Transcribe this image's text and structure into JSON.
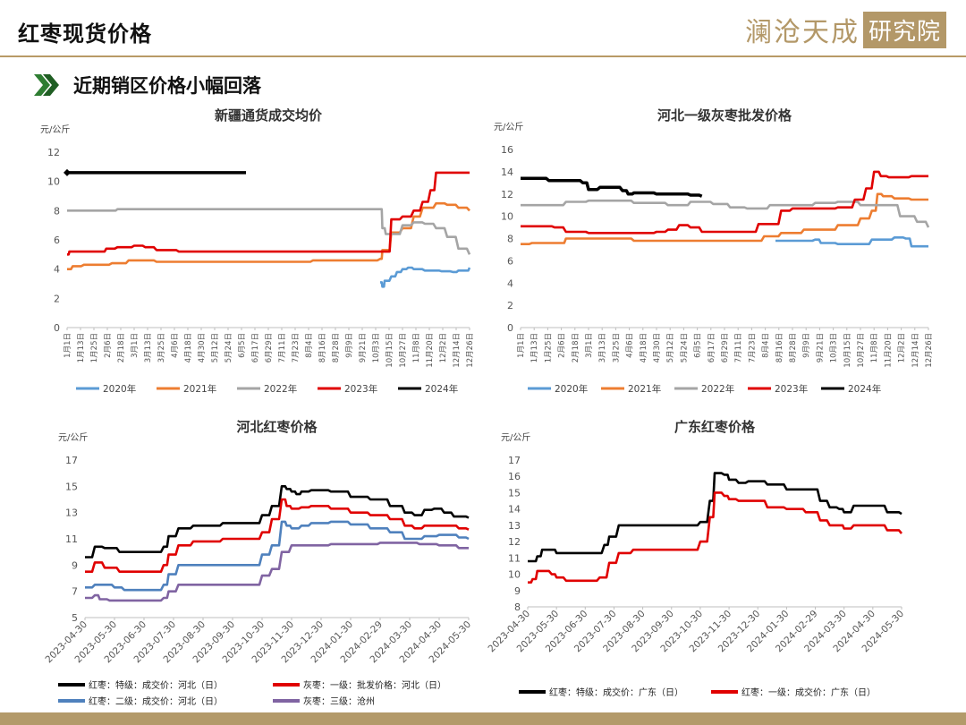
{
  "header": {
    "title": "红枣现货价格",
    "brand": "澜沧天成",
    "brand_box": "研究院"
  },
  "section": {
    "title": "近期销区价格小幅回落",
    "icon": "double-chevron-right-icon"
  },
  "colors": {
    "gold": "#b39868",
    "c2020": "#5b9bd5",
    "c2021": "#ed7d31",
    "c2022": "#a5a5a5",
    "c2023": "#e00000",
    "c2024": "#000000",
    "purple": "#8064a2",
    "blue": "#4f81bd"
  },
  "chart_data": [
    {
      "id": "xinjiang",
      "type": "line",
      "title": "新疆通货成交均价",
      "unit": "元/公斤",
      "ylim": [
        0,
        12
      ],
      "yticks": [
        0,
        2,
        4,
        6,
        8,
        10,
        12
      ],
      "x_domain": [
        0,
        360
      ],
      "xtick_labels": [
        "1月1日",
        "1月13日",
        "1月25日",
        "2月6日",
        "2月18日",
        "3月1日",
        "3月13日",
        "3月25日",
        "4月6日",
        "4月18日",
        "4月30日",
        "5月12日",
        "5月24日",
        "6月5日",
        "6月17日",
        "6月29日",
        "7月11日",
        "7月23日",
        "8月4日",
        "8月16日",
        "8月28日",
        "9月9日",
        "9月21日",
        "10月3日",
        "10月15日",
        "10月27日",
        "11月8日",
        "11月20日",
        "12月2日",
        "12月14日",
        "12月26日"
      ],
      "series": [
        {
          "name": "2020年",
          "color": "#5b9bd5",
          "x": [
            280,
            282,
            284,
            290,
            295,
            300,
            305,
            310,
            320,
            335,
            345,
            350,
            356,
            360
          ],
          "y": [
            3.1,
            2.8,
            3.2,
            3.5,
            3.8,
            4.0,
            4.1,
            4.0,
            3.9,
            3.85,
            3.8,
            3.9,
            3.9,
            4.1
          ]
        },
        {
          "name": "2021年",
          "color": "#ed7d31",
          "x": [
            0,
            5,
            15,
            40,
            55,
            80,
            120,
            180,
            220,
            270,
            280,
            282,
            285,
            290,
            300,
            310,
            318,
            330,
            340,
            350,
            360
          ],
          "y": [
            4.0,
            4.2,
            4.3,
            4.4,
            4.6,
            4.5,
            4.5,
            4.5,
            4.6,
            4.6,
            4.7,
            5.3,
            5.3,
            6.5,
            6.8,
            7.6,
            8.2,
            8.5,
            8.4,
            8.2,
            8.0
          ]
        },
        {
          "name": "2022年",
          "color": "#a5a5a5",
          "x": [
            0,
            40,
            45,
            90,
            150,
            200,
            250,
            280,
            282,
            285,
            300,
            310,
            320,
            330,
            340,
            350,
            360
          ],
          "y": [
            8.0,
            8.0,
            8.1,
            8.1,
            8.1,
            8.1,
            8.1,
            8.1,
            6.8,
            6.4,
            7.0,
            7.2,
            7.1,
            6.8,
            6.2,
            5.4,
            5.0
          ]
        },
        {
          "name": "2023年",
          "color": "#e00000",
          "x": [
            0,
            2,
            30,
            35,
            45,
            60,
            70,
            80,
            100,
            150,
            200,
            260,
            285,
            290,
            300,
            310,
            318,
            325,
            330,
            360
          ],
          "y": [
            5.0,
            5.2,
            5.2,
            5.4,
            5.5,
            5.6,
            5.5,
            5.3,
            5.2,
            5.2,
            5.2,
            5.2,
            5.2,
            7.4,
            7.6,
            8.0,
            8.6,
            9.4,
            10.6,
            10.6
          ]
        },
        {
          "name": "2024年",
          "color": "#000000",
          "x": [
            0,
            160
          ],
          "y": [
            10.6,
            10.6
          ]
        }
      ]
    },
    {
      "id": "hebei-wholesale",
      "type": "line",
      "title": "河北一级灰枣批发价格",
      "unit": "元/公斤",
      "ylim": [
        0,
        16
      ],
      "yticks": [
        0,
        2,
        4,
        6,
        8,
        10,
        12,
        14,
        16
      ],
      "x_domain": [
        0,
        360
      ],
      "xtick_labels": [
        "1月1日",
        "1月13日",
        "1月25日",
        "2月6日",
        "2月18日",
        "3月1日",
        "3月13日",
        "3月25日",
        "4月6日",
        "4月18日",
        "4月30日",
        "5月12日",
        "5月24日",
        "6月5日",
        "6月17日",
        "6月29日",
        "7月11日",
        "7月23日",
        "8月4日",
        "8月16日",
        "8月28日",
        "9月9日",
        "9月21日",
        "10月3日",
        "10月15日",
        "10月27日",
        "11月8日",
        "11月20日",
        "12月2日",
        "12月14日",
        "12月26日"
      ],
      "series": [
        {
          "name": "2020年",
          "color": "#5b9bd5",
          "x": [
            225,
            260,
            265,
            280,
            300,
            310,
            330,
            340,
            345,
            360
          ],
          "y": [
            7.8,
            7.9,
            7.6,
            7.5,
            7.5,
            7.9,
            8.1,
            8.0,
            7.3,
            7.3
          ]
        },
        {
          "name": "2021年",
          "color": "#ed7d31",
          "x": [
            0,
            10,
            35,
            40,
            80,
            100,
            125,
            200,
            215,
            230,
            250,
            280,
            300,
            310,
            315,
            320,
            330,
            345,
            360
          ],
          "y": [
            7.5,
            7.6,
            7.6,
            8.0,
            8.0,
            7.8,
            7.8,
            7.8,
            8.2,
            8.5,
            8.8,
            9.2,
            9.8,
            10.5,
            12.0,
            11.8,
            11.6,
            11.5,
            11.5
          ]
        },
        {
          "name": "2022年",
          "color": "#a5a5a5",
          "x": [
            0,
            10,
            40,
            60,
            100,
            130,
            150,
            170,
            185,
            200,
            220,
            260,
            280,
            300,
            320,
            335,
            350,
            360
          ],
          "y": [
            11.0,
            11.0,
            11.3,
            11.4,
            11.2,
            11.0,
            11.3,
            11.1,
            10.8,
            10.7,
            11.0,
            11.2,
            11.3,
            11.0,
            11.0,
            10.0,
            9.5,
            9.0
          ]
        },
        {
          "name": "2023年",
          "color": "#e00000",
          "x": [
            0,
            30,
            40,
            60,
            100,
            120,
            130,
            140,
            150,
            160,
            200,
            210,
            230,
            240,
            260,
            280,
            295,
            305,
            312,
            318,
            325,
            345,
            360
          ],
          "y": [
            9.1,
            9.0,
            8.6,
            8.5,
            8.5,
            8.6,
            8.8,
            9.2,
            9.0,
            8.6,
            8.6,
            9.3,
            10.5,
            10.7,
            10.7,
            10.8,
            11.5,
            12.5,
            14.0,
            13.6,
            13.5,
            13.6,
            13.6
          ]
        },
        {
          "name": "2024年",
          "color": "#000000",
          "x": [
            0,
            15,
            25,
            55,
            60,
            70,
            90,
            95,
            100,
            120,
            140,
            150,
            160
          ],
          "y": [
            13.4,
            13.4,
            13.2,
            13.0,
            12.4,
            12.6,
            12.3,
            12.0,
            12.1,
            12.0,
            12.0,
            11.9,
            11.8
          ]
        }
      ]
    },
    {
      "id": "hebei-red-dates",
      "type": "line",
      "title": "河北红枣价格",
      "unit": "元/公斤",
      "ylim": [
        5,
        17
      ],
      "yticks": [
        5,
        7,
        9,
        11,
        13,
        15,
        17
      ],
      "x_domain": [
        0,
        390
      ],
      "xtick_labels": [
        "2023-04-30",
        "2023-05-30",
        "2023-06-30",
        "2023-07-30",
        "2023-08-30",
        "2023-09-30",
        "2023-10-30",
        "2023-11-30",
        "2023-12-30",
        "2024-01-30",
        "2024-02-29",
        "2024-03-30",
        "2024-04-30",
        "2024-05-30"
      ],
      "series": [
        {
          "name": "红枣：特级：成交价：河北（日）",
          "color": "#000000",
          "x": [
            0,
            10,
            20,
            35,
            60,
            80,
            85,
            95,
            110,
            140,
            180,
            190,
            200,
            205,
            210,
            215,
            220,
            230,
            250,
            270,
            290,
            310,
            325,
            335,
            345,
            355,
            365,
            375,
            390
          ],
          "y": [
            9.6,
            10.4,
            10.3,
            10.0,
            10.0,
            10.4,
            11.2,
            11.8,
            12.0,
            12.2,
            12.8,
            13.5,
            15.0,
            14.8,
            14.6,
            14.4,
            14.6,
            14.7,
            14.6,
            14.2,
            14.0,
            13.5,
            13.0,
            12.8,
            13.2,
            13.3,
            13.0,
            12.7,
            12.6
          ]
        },
        {
          "name": "灰枣：一级：批发价格：河北（日）",
          "color": "#e00000",
          "x": [
            0,
            10,
            20,
            35,
            60,
            80,
            85,
            95,
            110,
            140,
            180,
            190,
            200,
            205,
            210,
            220,
            230,
            250,
            270,
            290,
            310,
            325,
            335,
            345,
            360,
            380,
            390
          ],
          "y": [
            8.5,
            9.2,
            8.8,
            8.5,
            8.5,
            9.0,
            9.8,
            10.5,
            10.8,
            11.0,
            11.5,
            12.5,
            14.0,
            13.5,
            13.3,
            13.4,
            13.5,
            13.3,
            13.0,
            12.8,
            12.5,
            12.0,
            11.8,
            12.0,
            12.0,
            11.8,
            11.7
          ]
        },
        {
          "name": "红枣：二级：成交价：河北（日）",
          "color": "#4f81bd",
          "x": [
            0,
            10,
            30,
            40,
            60,
            80,
            85,
            95,
            110,
            140,
            180,
            190,
            200,
            205,
            210,
            220,
            230,
            250,
            270,
            290,
            310,
            325,
            335,
            345,
            360,
            380,
            390
          ],
          "y": [
            7.3,
            7.5,
            7.3,
            7.1,
            7.1,
            7.5,
            8.3,
            9.0,
            9.0,
            9.0,
            9.8,
            10.5,
            12.3,
            12.0,
            11.8,
            12.0,
            12.2,
            12.3,
            12.1,
            11.8,
            11.5,
            11.0,
            11.0,
            11.2,
            11.3,
            11.1,
            11.0
          ]
        },
        {
          "name": "灰枣：三级：沧州",
          "color": "#8064a2",
          "x": [
            0,
            10,
            15,
            25,
            40,
            60,
            80,
            85,
            95,
            110,
            140,
            180,
            190,
            200,
            210,
            230,
            250,
            270,
            300,
            320,
            340,
            360,
            380,
            390
          ],
          "y": [
            6.5,
            6.7,
            6.4,
            6.3,
            6.3,
            6.3,
            6.5,
            7.0,
            7.5,
            7.5,
            7.5,
            8.2,
            8.7,
            10.0,
            10.5,
            10.5,
            10.6,
            10.6,
            10.7,
            10.7,
            10.6,
            10.5,
            10.3,
            10.3
          ]
        }
      ],
      "legend": [
        {
          "label": "红枣：特级：成交价：河北（日）",
          "color": "#000000"
        },
        {
          "label": "灰枣：一级：批发价格：河北（日）",
          "color": "#e00000"
        },
        {
          "label": "红枣：二级：成交价：河北（日）",
          "color": "#4f81bd"
        },
        {
          "label": "灰枣：三级：沧州",
          "color": "#8064a2"
        }
      ]
    },
    {
      "id": "guangdong-red-dates",
      "type": "line",
      "title": "广东红枣价格",
      "unit": "元/公斤",
      "ylim": [
        8,
        17
      ],
      "yticks": [
        8,
        9,
        10,
        11,
        12,
        13,
        14,
        15,
        16,
        17
      ],
      "x_domain": [
        0,
        390
      ],
      "xtick_labels": [
        "2023-04-30",
        "2023-05-30",
        "2023-06-30",
        "2023-07-30",
        "2023-08-30",
        "2023-09-30",
        "2023-10-30",
        "2023-11-30",
        "2023-12-30",
        "2024-01-30",
        "2024-02-29",
        "2024-03-30",
        "2024-04-30",
        "2024-05-30"
      ],
      "series": [
        {
          "name": "红枣：特级：成交价：广东（日）",
          "color": "#000000",
          "x": [
            0,
            5,
            10,
            15,
            25,
            30,
            60,
            80,
            85,
            95,
            110,
            140,
            180,
            190,
            195,
            205,
            210,
            220,
            230,
            250,
            270,
            290,
            305,
            315,
            325,
            330,
            340,
            360,
            375,
            390
          ],
          "y": [
            10.8,
            10.8,
            11.1,
            11.5,
            11.5,
            11.3,
            11.3,
            11.8,
            12.3,
            13.0,
            13.0,
            13.0,
            13.2,
            14.5,
            16.2,
            16.1,
            15.8,
            15.6,
            15.7,
            15.5,
            15.2,
            15.2,
            14.5,
            14.1,
            14.0,
            13.8,
            14.2,
            14.2,
            13.8,
            13.7
          ]
        },
        {
          "name": "红枣：一级：成交价：广东（日）",
          "color": "#e00000",
          "x": [
            0,
            5,
            10,
            15,
            25,
            30,
            40,
            60,
            75,
            85,
            95,
            110,
            140,
            180,
            190,
            195,
            205,
            210,
            220,
            250,
            270,
            290,
            305,
            315,
            325,
            330,
            340,
            360,
            375,
            390
          ],
          "y": [
            9.5,
            9.7,
            10.2,
            10.2,
            10.0,
            9.8,
            9.6,
            9.6,
            9.8,
            10.7,
            11.3,
            11.5,
            11.5,
            12.0,
            13.5,
            15.0,
            14.8,
            14.6,
            14.5,
            14.1,
            14.0,
            13.8,
            13.3,
            13.0,
            13.0,
            12.8,
            13.0,
            13.0,
            12.7,
            12.5
          ]
        }
      ],
      "legend": [
        {
          "label": "红枣：特级：成交价：广东（日）",
          "color": "#000000"
        },
        {
          "label": "红枣：一级：成交价：广东（日）",
          "color": "#e00000"
        }
      ]
    }
  ]
}
